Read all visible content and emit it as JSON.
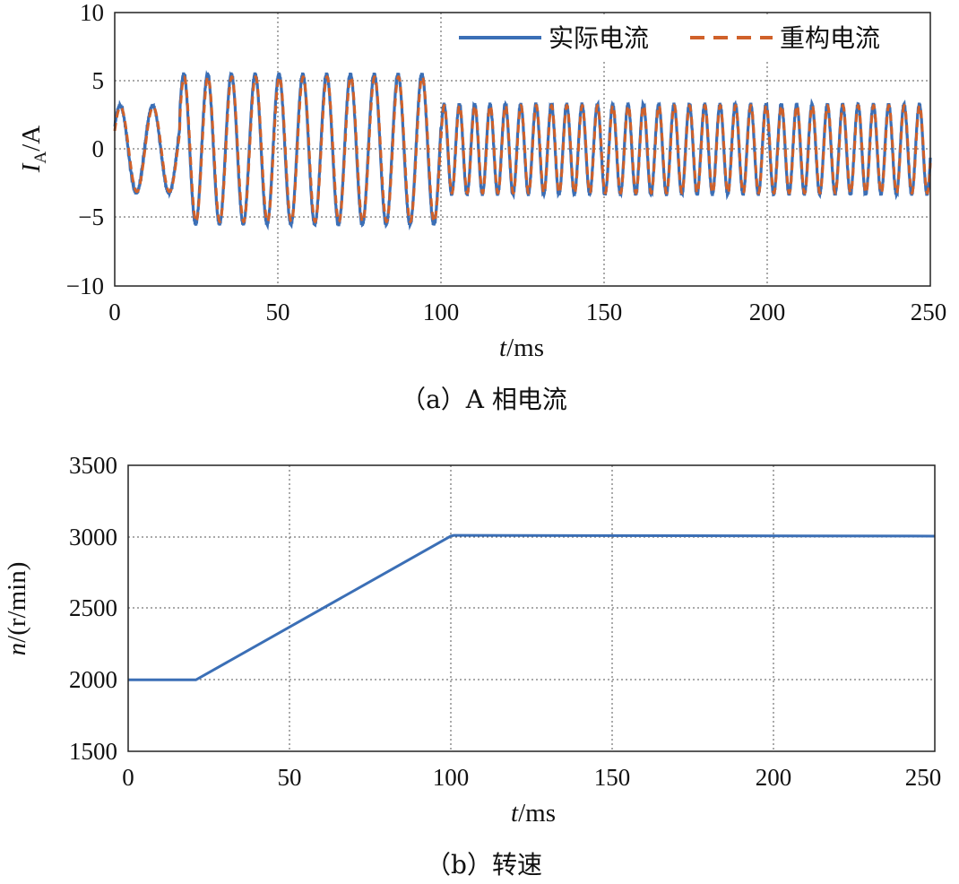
{
  "colors": {
    "actual": "#3b6fb6",
    "reconstructed": "#d0612a",
    "axis": "#222222"
  },
  "chart_data": [
    {
      "type": "line",
      "caption": "（a）A 相电流",
      "xlabel_var": "t",
      "xlabel_unit": "/ms",
      "ylabel_var": "I",
      "ylabel_sub": "A",
      "ylabel_unit": "/A",
      "xlim": [
        0,
        250
      ],
      "ylim": [
        -10,
        10
      ],
      "xticks": [
        "0",
        "50",
        "100",
        "150",
        "200",
        "250"
      ],
      "yticks": [
        "10",
        "5",
        "0",
        "−5",
        "−10"
      ],
      "grid": true,
      "legend_position": "top-right",
      "series": [
        {
          "name": "实际电流",
          "style": "solid",
          "segments": [
            {
              "t_start": 0,
              "t_end": 20,
              "amplitude": 3.2,
              "period_ms": 10.0
            },
            {
              "t_start": 20,
              "t_end": 100,
              "amplitude": 5.5,
              "period_ms": 7.3
            },
            {
              "t_start": 100,
              "t_end": 250,
              "amplitude": 3.3,
              "period_ms": 4.7
            }
          ]
        },
        {
          "name": "重构电流",
          "style": "dashed",
          "segments": [
            {
              "t_start": 0,
              "t_end": 20,
              "amplitude": 3.1,
              "period_ms": 10.0
            },
            {
              "t_start": 20,
              "t_end": 100,
              "amplitude": 5.3,
              "period_ms": 7.3
            },
            {
              "t_start": 100,
              "t_end": 250,
              "amplitude": 3.2,
              "period_ms": 4.7
            }
          ]
        }
      ]
    },
    {
      "type": "line",
      "caption": "（b）转速",
      "xlabel_var": "t",
      "xlabel_unit": "/ms",
      "ylabel_var": "n",
      "ylabel_unit": "/(r/min)",
      "xlim": [
        0,
        250
      ],
      "ylim": [
        1500,
        3500
      ],
      "xticks": [
        "0",
        "50",
        "100",
        "150",
        "200",
        "250"
      ],
      "yticks": [
        "3500",
        "3000",
        "2500",
        "2000",
        "1500"
      ],
      "grid": true,
      "series": [
        {
          "name": "转速",
          "x": [
            0,
            21,
            100,
            101,
            250
          ],
          "y": [
            2000,
            2000,
            3005,
            3010,
            3005
          ]
        }
      ]
    }
  ]
}
